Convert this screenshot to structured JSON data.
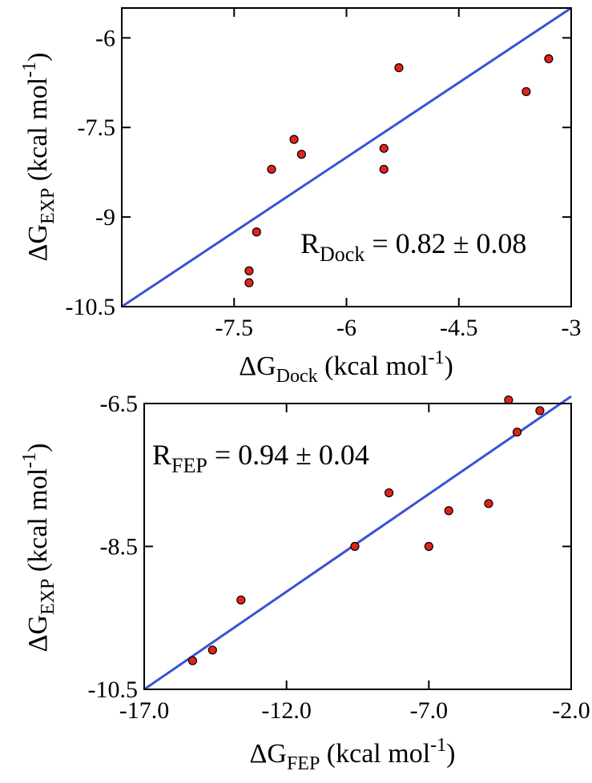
{
  "chart_data": [
    {
      "type": "scatter",
      "xlabel": {
        "main": "ΔG",
        "sub": "Dock",
        "unit": " (kcal mol",
        "sup": "-1",
        "close": ")"
      },
      "ylabel": {
        "main": "ΔG",
        "sub": "EXP",
        "unit": " (kcal mol",
        "sup": "-1",
        "close": ")"
      },
      "xlim": [
        -9.0,
        -3.0
      ],
      "ylim": [
        -10.5,
        -5.5
      ],
      "xticks": [
        -7.5,
        -6,
        -4.5,
        -3
      ],
      "xtick_labels": [
        "-7.5",
        "-6",
        "-4.5",
        "-3"
      ],
      "yticks": [
        -10.5,
        -9,
        -7.5,
        -6
      ],
      "ytick_labels": [
        "-10.5",
        "-9",
        "-7.5",
        "-6"
      ],
      "series": [
        {
          "x": [
            -7.3,
            -7.3,
            -7.2,
            -7.0,
            -6.7,
            -6.6,
            -5.5,
            -5.5,
            -5.3,
            -3.6,
            -3.3
          ],
          "y": [
            -10.1,
            -9.9,
            -9.25,
            -8.2,
            -7.7,
            -7.95,
            -7.85,
            -8.2,
            -6.5,
            -6.9,
            -6.35
          ],
          "color": "#e2231a"
        }
      ],
      "fit_line": {
        "x": [
          -9.0,
          -3.0
        ],
        "y": [
          -10.5,
          -5.5
        ],
        "color": "#3b52d6"
      },
      "annotation": {
        "main": "R",
        "sub": "Dock",
        "rest": " = 0.82 ± 0.08"
      }
    },
    {
      "type": "scatter",
      "xlabel": {
        "main": "ΔG",
        "sub": "FEP",
        "unit": " (kcal mol",
        "sup": "-1",
        "close": ")"
      },
      "ylabel": {
        "main": "ΔG",
        "sub": "EXP",
        "unit": " (kcal mol",
        "sup": "-1",
        "close": ")"
      },
      "xlim": [
        -17.0,
        -2.0
      ],
      "ylim": [
        -10.5,
        -6.5
      ],
      "xticks": [
        -17.0,
        -12.0,
        -7.0,
        -2.0
      ],
      "xtick_labels": [
        "-17.0",
        "-12.0",
        "-7.0",
        "-2.0"
      ],
      "yticks": [
        -10.5,
        -8.5,
        -6.5
      ],
      "ytick_labels": [
        "-10.5",
        "-8.5",
        "-6.5"
      ],
      "series": [
        {
          "x": [
            -15.3,
            -14.6,
            -13.6,
            -9.6,
            -8.4,
            -7.0,
            -6.3,
            -4.9,
            -4.2,
            -3.9,
            -3.1
          ],
          "y": [
            -10.1,
            -9.95,
            -9.25,
            -8.5,
            -7.75,
            -8.5,
            -8.0,
            -7.9,
            -6.45,
            -6.9,
            -6.6
          ],
          "color": "#e2231a"
        }
      ],
      "fit_line": {
        "x": [
          -17.0,
          -2.0
        ],
        "y": [
          -10.5,
          -6.4
        ],
        "color": "#3b52d6"
      },
      "annotation": {
        "main": "R",
        "sub": "FEP",
        "rest": " = 0.94 ± 0.04"
      }
    }
  ]
}
